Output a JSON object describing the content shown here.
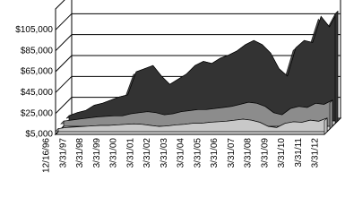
{
  "chart_data": {
    "type": "area3d",
    "categories": [
      "12/16/96",
      null,
      "3/31/97",
      null,
      "3/31/98",
      null,
      "3/31/99",
      null,
      "3/31/00",
      null,
      "3/31/01",
      null,
      "3/31/02",
      null,
      "3/31/03",
      null,
      "3/31/04",
      null,
      "3/31/05",
      null,
      "3/31/06",
      null,
      "3/31/07",
      null,
      "3/31/08",
      null,
      "3/31/09",
      null,
      "3/31/10",
      null,
      "3/31/11",
      null,
      "3/31/12"
    ],
    "series": [
      {
        "color": "#333333",
        "values": [
          10000,
          13000,
          15000,
          20000,
          22000,
          25000,
          28000,
          30000,
          52000,
          55000,
          58000,
          48000,
          40000,
          45000,
          50000,
          58000,
          62000,
          60000,
          65000,
          68000,
          72000,
          78000,
          82000,
          78000,
          70000,
          55000,
          48000,
          75000,
          82000,
          80000,
          105000,
          95000,
          110000
        ]
      },
      {
        "color": "#8c8c8c",
        "values": [
          10000,
          11000,
          12000,
          13000,
          14000,
          14500,
          15000,
          15000,
          17000,
          18000,
          19000,
          18000,
          16000,
          17000,
          19000,
          20000,
          21000,
          21000,
          22000,
          23000,
          24000,
          26000,
          28000,
          27000,
          24000,
          18000,
          16000,
          22000,
          24000,
          23000,
          27000,
          26000,
          30000
        ]
      },
      {
        "color": "#c8c8c8",
        "values": [
          8000,
          9000,
          9500,
          10000,
          10500,
          11000,
          11000,
          11500,
          12000,
          12500,
          12000,
          11000,
          10000,
          10500,
          11500,
          12000,
          13000,
          13000,
          14000,
          14500,
          15000,
          16000,
          17000,
          16000,
          14000,
          10000,
          9000,
          13000,
          14500,
          14000,
          16000,
          15000,
          18000
        ]
      }
    ],
    "ylim": [
      5000,
      125000
    ],
    "yticks": [
      {
        "value": 5000,
        "label": "$5,000"
      },
      {
        "value": 25000,
        "label": "$25,000"
      },
      {
        "value": 45000,
        "label": "$45,000"
      },
      {
        "value": 65000,
        "label": "$65,000"
      },
      {
        "value": 85000,
        "label": "$85,000"
      },
      {
        "value": 105000,
        "label": "$105,000"
      }
    ],
    "grid": true
  }
}
